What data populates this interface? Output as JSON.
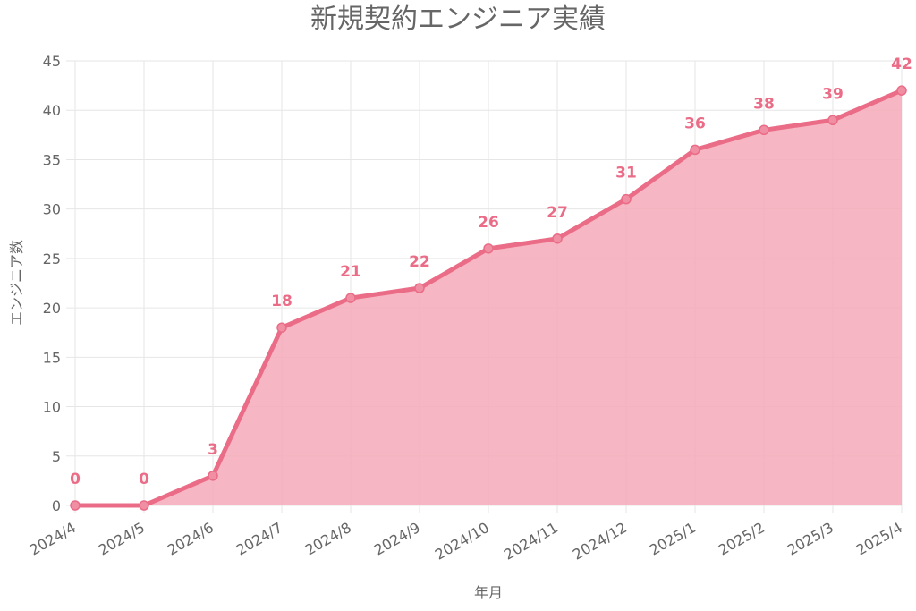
{
  "chart_data": {
    "type": "area",
    "title": "新規契約エンジニア実績",
    "xlabel": "年月",
    "ylabel": "エンジニア数",
    "categories": [
      "2024/4",
      "2024/5",
      "2024/6",
      "2024/7",
      "2024/8",
      "2024/9",
      "2024/10",
      "2024/11",
      "2024/12",
      "2025/1",
      "2025/2",
      "2025/3",
      "2025/4"
    ],
    "series": [
      {
        "values": [
          0,
          0,
          3,
          18,
          21,
          22,
          26,
          27,
          31,
          36,
          38,
          39,
          42
        ]
      }
    ],
    "ylim": [
      0,
      45
    ],
    "yticks": [
      0,
      5,
      10,
      15,
      20,
      25,
      30,
      35,
      40,
      45
    ],
    "grid": true,
    "legend": "none",
    "data_labels": true,
    "colors": {
      "line": "#ea6c87",
      "fill": "#f5a9b8",
      "point_fill": "#f08fa3",
      "label": "#ea6c87",
      "text": "#666666",
      "grid": "#e6e6e6"
    }
  }
}
